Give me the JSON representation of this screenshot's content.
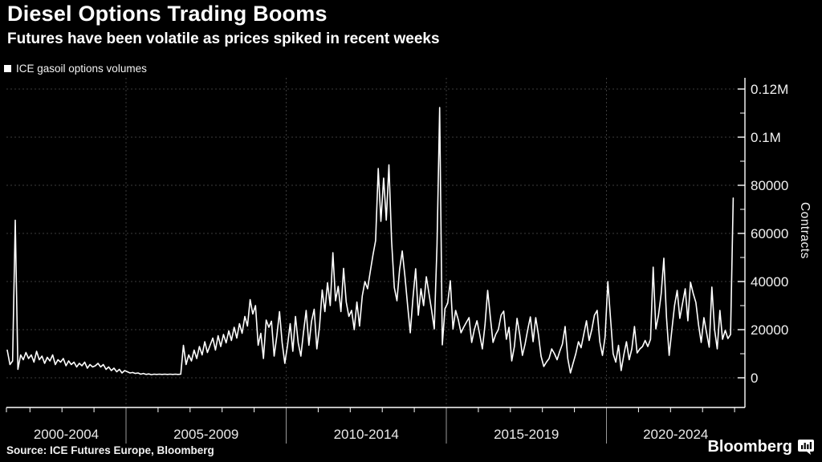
{
  "header": {
    "title": "Diesel Options Trading Booms",
    "subtitle": "Futures have been volatile as prices spiked in recent weeks"
  },
  "legend": {
    "label": "ICE gasoil options volumes",
    "marker_color": "#ffffff"
  },
  "footer": {
    "source": "Source: ICE Futures Europe, Bloomberg",
    "brand": "Bloomberg",
    "brand_icon": "bar-chart-bubble-icon"
  },
  "chart_data": {
    "type": "line",
    "title": "Diesel Options Trading Booms",
    "ylabel": "Contracts",
    "background_color": "#000000",
    "line_color": "#ffffff",
    "grid_color": "#3d3d3d",
    "axis_color": "#ffffff",
    "grid": "dashed",
    "legend_position": "top-left",
    "ylim": [
      0,
      125000
    ],
    "ytick_values": [
      0,
      20000,
      40000,
      60000,
      80000,
      100000,
      120000
    ],
    "ytick_labels": [
      "0",
      "20000",
      "40000",
      "60000",
      "80000",
      "0.1M",
      "0.12M"
    ],
    "ytick_minor_step": 10000,
    "x_period_labels": [
      "2000-2004",
      "2005-2009",
      "2010-2014",
      "2015-2019",
      "2020-2024"
    ],
    "x_period_boundary_years": [
      2000,
      2005,
      2010,
      2015,
      2020,
      2025
    ],
    "x_axis_year_range": [
      2000,
      2024.4
    ],
    "series": [
      {
        "name": "ICE gasoil options volumes",
        "color": "#ffffff",
        "frequency": "monthly",
        "start_year": 2001,
        "start_month": 4,
        "values": [
          11500,
          5500,
          7000,
          65500,
          3500,
          9500,
          7500,
          10500,
          8000,
          9500,
          6500,
          11000,
          7500,
          9000,
          6000,
          8500,
          7000,
          9500,
          5500,
          7500,
          6500,
          8000,
          5000,
          7000,
          5500,
          6500,
          4500,
          6000,
          5000,
          6500,
          4000,
          5500,
          4500,
          5000,
          6000,
          4500,
          5500,
          3500,
          4500,
          3000,
          4000,
          2500,
          3500,
          2000,
          3000,
          2500,
          2000,
          2200,
          1800,
          2000,
          1500,
          1800,
          1400,
          1600,
          1300,
          1500,
          1400,
          1500,
          1400,
          1500,
          1400,
          1500,
          1400,
          1500,
          1400,
          1500,
          13500,
          5500,
          9500,
          7000,
          11500,
          8000,
          13000,
          9500,
          15000,
          10500,
          13500,
          16500,
          11500,
          17500,
          13000,
          18000,
          14500,
          19500,
          15500,
          21000,
          16500,
          22500,
          18500,
          25500,
          21500,
          32500,
          26500,
          30000,
          13500,
          18500,
          8000,
          24000,
          21000,
          23500,
          9000,
          17500,
          27500,
          14500,
          6000,
          13500,
          22500,
          11000,
          25500,
          14500,
          9000,
          19000,
          28000,
          13500,
          23500,
          28500,
          12000,
          21500,
          36500,
          27500,
          39500,
          30000,
          52000,
          32000,
          38000,
          27500,
          45500,
          31500,
          25500,
          28000,
          20000,
          31500,
          21500,
          34000,
          40000,
          37000,
          44000,
          51000,
          57000,
          87000,
          65000,
          83000,
          65500,
          88500,
          57000,
          37500,
          32000,
          45000,
          52700,
          42000,
          30000,
          18700,
          33000,
          45300,
          26000,
          37000,
          30000,
          42000,
          35000,
          28000,
          20300,
          55000,
          112300,
          13700,
          28700,
          31000,
          40300,
          20300,
          28000,
          24000,
          18700,
          21000,
          23000,
          25000,
          14700,
          20000,
          23700,
          18000,
          12000,
          22000,
          36300,
          25000,
          14700,
          18000,
          20000,
          26000,
          27700,
          16000,
          21000,
          7000,
          13000,
          24700,
          18000,
          9300,
          14000,
          20000,
          25300,
          15000,
          25000,
          18000,
          9000,
          4700,
          6500,
          8000,
          12000,
          10000,
          7500,
          11000,
          14000,
          21300,
          8000,
          2000,
          6000,
          10000,
          15000,
          12500,
          18000,
          23700,
          15500,
          20000,
          26000,
          28000,
          15000,
          9300,
          17000,
          40000,
          25000,
          10000,
          6500,
          13500,
          3000,
          9500,
          15000,
          7500,
          12000,
          21300,
          10300,
          12000,
          13000,
          15500,
          13000,
          16000,
          46000,
          20300,
          26000,
          35000,
          49700,
          25000,
          9300,
          20000,
          30000,
          36300,
          24700,
          31000,
          37000,
          23700,
          39700,
          35000,
          31300,
          22000,
          14700,
          25000,
          18700,
          12700,
          37700,
          20000,
          12000,
          28000,
          16000,
          19700,
          16300,
          18000,
          74700
        ]
      }
    ]
  }
}
